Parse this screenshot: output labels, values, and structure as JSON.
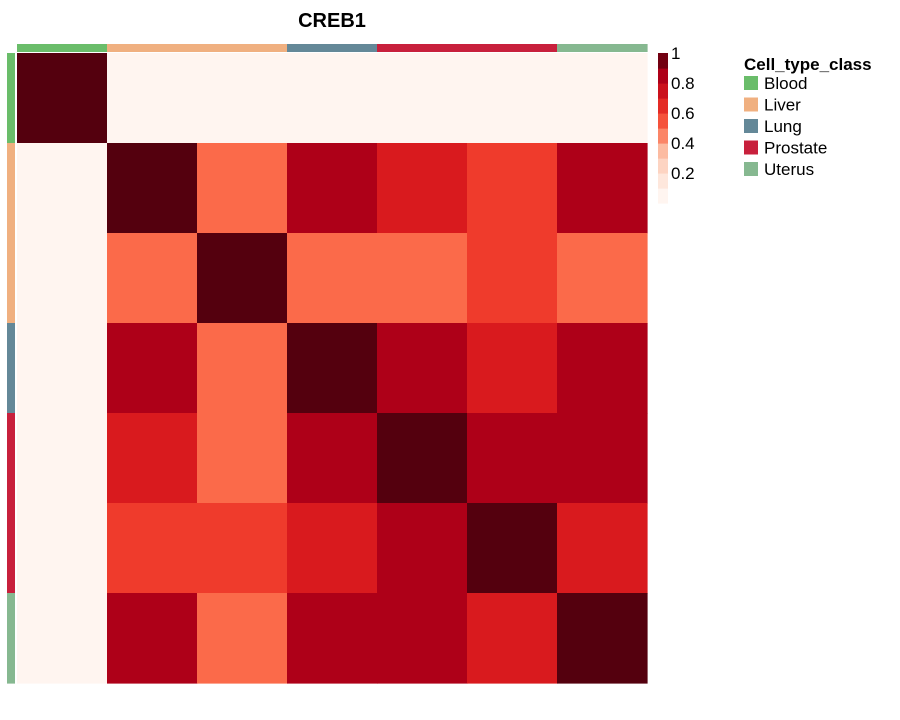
{
  "chart_data": {
    "type": "heatmap",
    "title": "CREB1",
    "rows": [
      "Blood",
      "Liver",
      "Liver",
      "Lung",
      "Prostate",
      "Prostate",
      "Uterus"
    ],
    "columns": [
      "Blood",
      "Liver",
      "Liver",
      "Lung",
      "Prostate",
      "Prostate",
      "Uterus"
    ],
    "values": [
      [
        1.0,
        0.05,
        0.05,
        0.05,
        0.05,
        0.05,
        0.05
      ],
      [
        0.05,
        1.0,
        0.5,
        0.85,
        0.7,
        0.6,
        0.85
      ],
      [
        0.05,
        0.5,
        1.0,
        0.5,
        0.5,
        0.6,
        0.5
      ],
      [
        0.05,
        0.85,
        0.5,
        1.0,
        0.85,
        0.7,
        0.85
      ],
      [
        0.05,
        0.7,
        0.5,
        0.85,
        1.0,
        0.85,
        0.85
      ],
      [
        0.05,
        0.6,
        0.6,
        0.7,
        0.85,
        1.0,
        0.7
      ],
      [
        0.05,
        0.85,
        0.5,
        0.85,
        0.85,
        0.7,
        1.0
      ]
    ],
    "colorbar": {
      "ticks": [
        "1",
        "0.8",
        "0.6",
        "0.4",
        "0.2"
      ],
      "tick_values": [
        1,
        0.8,
        0.6,
        0.4,
        0.2
      ],
      "range": [
        0,
        1
      ],
      "stops": [
        {
          "value": 0.05,
          "color": "#fff5f0"
        },
        {
          "value": 0.2,
          "color": "#fee0d2"
        },
        {
          "value": 0.35,
          "color": "#fcbba1"
        },
        {
          "value": 0.5,
          "color": "#fb6a4a"
        },
        {
          "value": 0.6,
          "color": "#ef3b2c"
        },
        {
          "value": 0.7,
          "color": "#d91a1e"
        },
        {
          "value": 0.85,
          "color": "#ae0018"
        },
        {
          "value": 1.0,
          "color": "#54000e"
        }
      ]
    },
    "legend": {
      "title": "Cell_type_class",
      "placement": "right",
      "entries": [
        {
          "label": "Blood",
          "color": "#6abd6a"
        },
        {
          "label": "Liver",
          "color": "#f0b080"
        },
        {
          "label": "Lung",
          "color": "#648898"
        },
        {
          "label": "Prostate",
          "color": "#c8203c"
        },
        {
          "label": "Uterus",
          "color": "#86b890"
        }
      ]
    }
  }
}
